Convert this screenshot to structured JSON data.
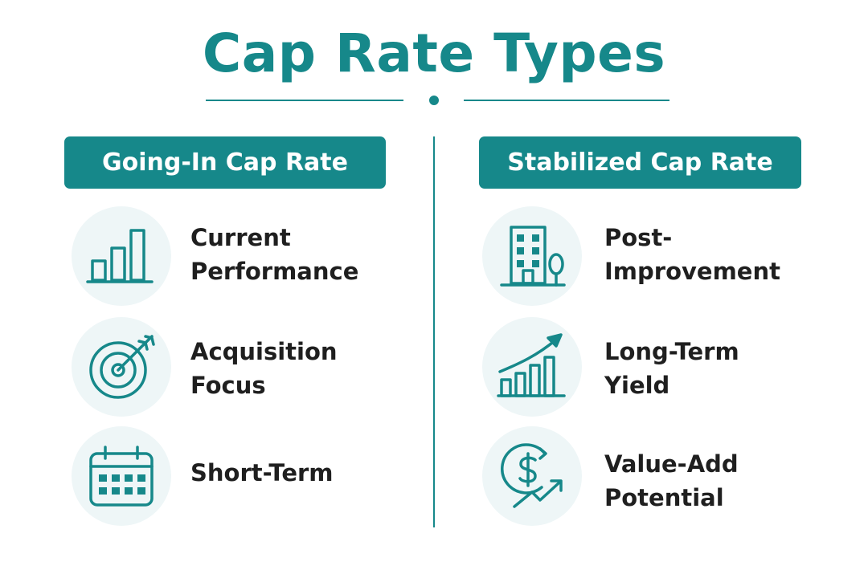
{
  "title": "Cap Rate Types",
  "accent_color": "#16888a",
  "columns": [
    {
      "header": "Going-In Cap Rate",
      "items": [
        {
          "label": "Current\nPerformance",
          "icon": "bar-chart-icon"
        },
        {
          "label": "Acquisition\nFocus",
          "icon": "target-icon"
        },
        {
          "label": "Short-Term",
          "icon": "calendar-icon"
        }
      ]
    },
    {
      "header": "Stabilized Cap Rate",
      "items": [
        {
          "label": "Post-\nImprovement",
          "icon": "building-icon"
        },
        {
          "label": "Long-Term\nYield",
          "icon": "growth-chart-icon"
        },
        {
          "label": "Value-Add\nPotential",
          "icon": "dollar-growth-icon"
        }
      ]
    }
  ]
}
